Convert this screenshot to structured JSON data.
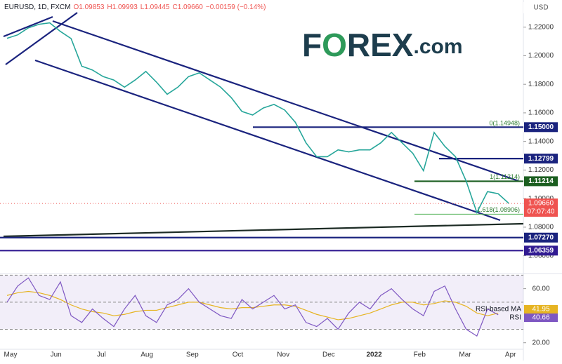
{
  "chart_data": [
    {
      "type": "line",
      "title": "EURUSD, 1D, FXCM",
      "ohlc": [
        "O1.09853",
        "H1.09993",
        "L1.09445",
        "C1.09660",
        "−0.00159 (−0.14%)"
      ],
      "logo": [
        "F",
        "O",
        "REX",
        ".com"
      ],
      "currency": "USD",
      "x_labels": [
        "May",
        "Jun",
        "Jul",
        "Aug",
        "Sep",
        "Oct",
        "Nov",
        "Dec",
        "2022",
        "Feb",
        "Mar",
        "Apr"
      ],
      "color": "#26a69a",
      "values": [
        1.2122,
        1.2146,
        1.2195,
        1.222,
        1.223,
        1.217,
        1.212,
        1.1927,
        1.19,
        1.1854,
        1.183,
        1.178,
        1.183,
        1.189,
        1.1815,
        1.173,
        1.178,
        1.1854,
        1.188,
        1.183,
        1.178,
        1.1707,
        1.161,
        1.1585,
        1.1634,
        1.1659,
        1.162,
        1.1534,
        1.139,
        1.1293,
        1.1293,
        1.1341,
        1.1327,
        1.1341,
        1.1341,
        1.139,
        1.1463,
        1.139,
        1.1317,
        1.1195,
        1.1463,
        1.1366,
        1.1293,
        1.1122,
        1.0902,
        1.1049,
        1.1034,
        1.0966
      ],
      "ylim": [
        1.05,
        1.239
      ],
      "yticks": [
        {
          "value": 1.22,
          "label": "1.22000"
        },
        {
          "value": 1.2,
          "label": "1.20000"
        },
        {
          "value": 1.18,
          "label": "1.18000"
        },
        {
          "value": 1.16,
          "label": "1.16000"
        },
        {
          "value": 1.14,
          "label": "1.14000"
        },
        {
          "value": 1.12,
          "label": "1.12000"
        },
        {
          "value": 1.1,
          "label": "1.10000"
        },
        {
          "value": 1.08,
          "label": "1.08000"
        },
        {
          "value": 1.06,
          "label": "1.06000"
        }
      ],
      "levels": [
        {
          "value": 1.15,
          "label": "1.15000",
          "color": "#1a237e"
        },
        {
          "value": 1.12799,
          "label": "1.12799",
          "color": "#1a237e"
        },
        {
          "value": 1.11214,
          "label": "1.11214",
          "color": "#1b5e20"
        },
        {
          "value": 1.0727,
          "label": "1.07270",
          "color": "#1a237e"
        },
        {
          "value": 1.06359,
          "label": "1.06359",
          "color": "#311b92"
        }
      ],
      "last": {
        "value": 1.0966,
        "label": "1.09660",
        "time": "07:07:40",
        "color": "#ef5350"
      },
      "fib": [
        {
          "value": 1.14948,
          "label": "0(1.14948)"
        },
        {
          "value": 1.11214,
          "label": "1(1.11214)"
        },
        {
          "value": 1.08906,
          "label": "1.618(1.08906)"
        }
      ]
    },
    {
      "type": "line",
      "ylim": [
        15.7,
        70.7
      ],
      "yticks": [
        {
          "value": 60,
          "label": "60.00"
        },
        {
          "value": 20,
          "label": "20.00"
        }
      ],
      "hlines": [
        70,
        50,
        30
      ],
      "series": [
        {
          "name": "RSI-based MA",
          "color": "#e6b422",
          "values": [
            55,
            57,
            58,
            57,
            55,
            52,
            48,
            45,
            43,
            42,
            40,
            41,
            43,
            44,
            44,
            46,
            48,
            50,
            50,
            48,
            46,
            45,
            46,
            46,
            47,
            48,
            48,
            47,
            44,
            41,
            39,
            37,
            38,
            40,
            42,
            45,
            48,
            50,
            50,
            48,
            49,
            51,
            50,
            47,
            42,
            40,
            41.95
          ]
        },
        {
          "name": "RSI",
          "color": "#7e57c2",
          "values": [
            50,
            62,
            68,
            55,
            52,
            65,
            40,
            35,
            45,
            38,
            32,
            45,
            55,
            40,
            35,
            48,
            52,
            60,
            50,
            45,
            40,
            38,
            52,
            45,
            50,
            55,
            45,
            48,
            35,
            32,
            38,
            30,
            42,
            50,
            45,
            55,
            60,
            52,
            45,
            40,
            58,
            62,
            45,
            30,
            25,
            45,
            40.66
          ]
        }
      ]
    }
  ]
}
